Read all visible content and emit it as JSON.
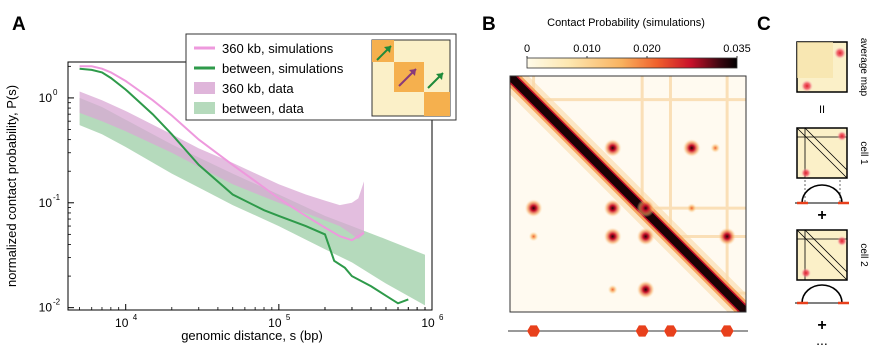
{
  "panels": {
    "a": {
      "letter": "A"
    },
    "b": {
      "letter": "B"
    },
    "c": {
      "letter": "C"
    }
  },
  "chart_data": [
    {
      "type": "line",
      "panel": "A",
      "xlabel": "genomic distance, s (bp)",
      "ylabel": "normalized contact probability, P(s)",
      "xscale": "log",
      "yscale": "log",
      "xlim": [
        4200,
        1000000
      ],
      "ylim": [
        0.0095,
        2.2
      ],
      "xticks": [
        {
          "base": "10",
          "exp": "4",
          "value": 10000
        },
        {
          "base": "10",
          "exp": "5",
          "value": 100000
        },
        {
          "base": "10",
          "exp": "6",
          "value": 1000000
        }
      ],
      "yticks": [
        {
          "base": "10",
          "exp": "0",
          "value": 1
        },
        {
          "base": "10",
          "exp": "-1",
          "value": 0.1
        },
        {
          "base": "10",
          "exp": "-2",
          "value": 0.01
        }
      ],
      "legend_position": "top-right",
      "series": [
        {
          "name": "360 kb, simulations",
          "kind": "line",
          "color": "#ee99dd",
          "x": [
            5000,
            6000,
            7000,
            8000,
            10000,
            15000,
            20000,
            30000,
            50000,
            80000,
            100000,
            150000,
            200000,
            250000,
            300000,
            360000
          ],
          "y": [
            2.0,
            2.0,
            1.9,
            1.75,
            1.45,
            0.95,
            0.68,
            0.4,
            0.23,
            0.14,
            0.11,
            0.075,
            0.058,
            0.048,
            0.044,
            0.052
          ]
        },
        {
          "name": "between, simulations",
          "kind": "line",
          "color": "#2e9a4a",
          "x": [
            5000,
            6000,
            7000,
            8000,
            10000,
            15000,
            20000,
            30000,
            50000,
            80000,
            100000,
            150000,
            200000,
            230000,
            270000,
            300000,
            400000,
            500000,
            600000,
            700000
          ],
          "y": [
            1.9,
            1.85,
            1.75,
            1.55,
            1.2,
            0.7,
            0.45,
            0.23,
            0.12,
            0.085,
            0.075,
            0.06,
            0.05,
            0.028,
            0.024,
            0.02,
            0.016,
            0.013,
            0.011,
            0.012
          ]
        },
        {
          "name": "360 kb, data",
          "kind": "band",
          "color": "#d9a8d4",
          "x": [
            5000,
            7000,
            10000,
            20000,
            30000,
            50000,
            100000,
            150000,
            200000,
            250000,
            300000,
            330000,
            360000
          ],
          "upper": [
            1.15,
            0.95,
            0.75,
            0.45,
            0.33,
            0.24,
            0.15,
            0.12,
            0.105,
            0.095,
            0.1,
            0.11,
            0.16
          ],
          "lower": [
            0.72,
            0.6,
            0.48,
            0.3,
            0.22,
            0.15,
            0.1,
            0.08,
            0.068,
            0.06,
            0.05,
            0.045,
            0.05
          ]
        },
        {
          "name": "between, data",
          "kind": "band",
          "color": "#a8d4b0",
          "x": [
            5000,
            7000,
            10000,
            20000,
            30000,
            50000,
            100000,
            200000,
            300000,
            500000,
            900000
          ],
          "upper": [
            1.0,
            0.82,
            0.62,
            0.36,
            0.27,
            0.19,
            0.12,
            0.075,
            0.06,
            0.045,
            0.032
          ],
          "lower": [
            0.55,
            0.45,
            0.34,
            0.19,
            0.14,
            0.095,
            0.06,
            0.036,
            0.027,
            0.017,
            0.0105
          ]
        }
      ]
    },
    {
      "type": "heatmap",
      "panel": "B",
      "title": "Contact Probability (simulations)",
      "colorbar": {
        "ticks": [
          "0",
          "0.010",
          "0.020",
          "0.035"
        ],
        "values": [
          0,
          0.01,
          0.02,
          0.035
        ]
      },
      "colorscale": [
        "#fffbe9",
        "#fde0a0",
        "#f9b25f",
        "#f0602c",
        "#c8102a",
        "#3a0610",
        "#000000"
      ],
      "peaks": [
        {
          "i": 0.435,
          "j": 0.305,
          "value": 0.025
        },
        {
          "i": 0.77,
          "j": 0.305,
          "value": 0.02
        },
        {
          "i": 0.87,
          "j": 0.305,
          "value": 0.006
        },
        {
          "i": 0.1,
          "j": 0.56,
          "value": 0.026
        },
        {
          "i": 0.435,
          "j": 0.56,
          "value": 0.018
        },
        {
          "i": 0.575,
          "j": 0.56,
          "value": 0.02
        },
        {
          "i": 0.77,
          "j": 0.56,
          "value": 0.011
        },
        {
          "i": 0.1,
          "j": 0.68,
          "value": 0.006
        },
        {
          "i": 0.435,
          "j": 0.68,
          "value": 0.016
        },
        {
          "i": 0.575,
          "j": 0.68,
          "value": 0.016
        },
        {
          "i": 0.92,
          "j": 0.68,
          "value": 0.018
        },
        {
          "i": 0.575,
          "j": 0.905,
          "value": 0.02
        },
        {
          "i": 0.435,
          "j": 0.905,
          "value": 0.008
        }
      ],
      "ctcf_sites": [
        0.1,
        0.56,
        0.68,
        0.92
      ]
    }
  ],
  "panel_c": {
    "labels": [
      "average map",
      "II",
      "cell 1",
      "+",
      "cell 2",
      "+",
      "..."
    ]
  },
  "colors": {
    "loop_site": "#e8401c",
    "arrow_green": "#1f8a3a",
    "arrow_purple": "#8a3a7a",
    "tad_orange": "#f5b04e",
    "tad_light": "#fbf0c8"
  }
}
